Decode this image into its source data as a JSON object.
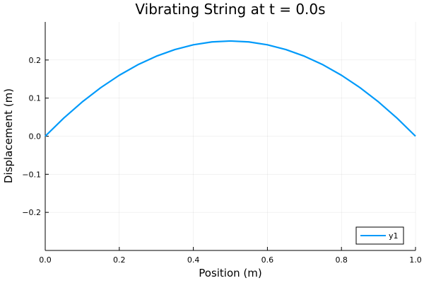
{
  "chart_data": {
    "type": "line",
    "title": "Vibrating String at t = 0.0s",
    "xlabel": "Position (m)",
    "ylabel": "Displacement (m)",
    "xlim": [
      0.0,
      1.0
    ],
    "ylim": [
      -0.3,
      0.3
    ],
    "x_ticks": [
      0.0,
      0.2,
      0.4,
      0.6,
      0.8,
      1.0
    ],
    "x_tick_labels": [
      "0.0",
      "0.2",
      "0.4",
      "0.6",
      "0.8",
      "1.0"
    ],
    "y_ticks": [
      -0.2,
      -0.1,
      0.0,
      0.1,
      0.2
    ],
    "y_tick_labels": [
      "−0.2",
      "−0.1",
      "0.0",
      "0.1",
      "0.2"
    ],
    "grid": true,
    "legend_position": "bottom-right",
    "series": [
      {
        "name": "y1",
        "color": "#009AFA",
        "x": [
          0.0,
          0.05,
          0.1,
          0.15,
          0.2,
          0.25,
          0.3,
          0.35,
          0.4,
          0.45,
          0.5,
          0.55,
          0.6,
          0.65,
          0.7,
          0.75,
          0.8,
          0.85,
          0.9,
          0.95,
          1.0
        ],
        "y": [
          0.0,
          0.0475,
          0.09,
          0.1275,
          0.16,
          0.1875,
          0.21,
          0.2275,
          0.24,
          0.2475,
          0.25,
          0.2475,
          0.24,
          0.2275,
          0.21,
          0.1875,
          0.16,
          0.1275,
          0.09,
          0.0475,
          0.0
        ]
      }
    ]
  }
}
